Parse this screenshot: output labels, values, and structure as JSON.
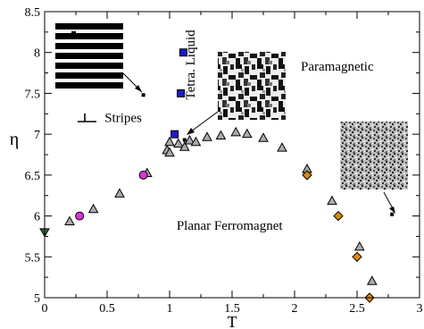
{
  "chart_data": {
    "type": "scatter",
    "xlabel": "T",
    "ylabel": "η",
    "xlim": [
      0,
      3
    ],
    "ylim": [
      5,
      8.5
    ],
    "x_ticks": [
      0,
      0.5,
      1,
      1.5,
      2,
      2.5,
      3
    ],
    "y_ticks": [
      5,
      5.5,
      6,
      6.5,
      7,
      7.5,
      8,
      8.5
    ],
    "x_tick_labels": [
      "0",
      "0.5",
      "1",
      "1.5",
      "2",
      "2.5",
      "3"
    ],
    "y_tick_labels": [
      "5",
      "5.5",
      "6",
      "6.5",
      "7",
      "7.5",
      "8",
      "8.5"
    ],
    "grid": false,
    "series": [
      {
        "marker": "triangle-up",
        "color": "#aaaaaa",
        "points": [
          [
            0.2,
            5.93
          ],
          [
            0.39,
            6.08
          ],
          [
            0.6,
            6.27
          ],
          [
            0.82,
            6.52
          ],
          [
            0.98,
            6.8
          ],
          [
            1.0,
            6.9
          ],
          [
            1.0,
            6.77
          ],
          [
            1.07,
            6.88
          ],
          [
            1.12,
            6.84
          ],
          [
            1.16,
            6.92
          ],
          [
            1.21,
            6.9
          ],
          [
            1.3,
            6.96
          ],
          [
            1.41,
            6.98
          ],
          [
            1.53,
            7.02
          ],
          [
            1.62,
            7.0
          ],
          [
            1.75,
            6.95
          ],
          [
            1.9,
            6.83
          ],
          [
            2.1,
            6.57
          ],
          [
            2.3,
            6.18
          ],
          [
            2.52,
            5.62
          ],
          [
            2.62,
            5.2
          ]
        ]
      },
      {
        "marker": "square",
        "color": "#1a1acc",
        "points": [
          [
            1.11,
            8.0
          ],
          [
            1.09,
            7.5
          ],
          [
            1.04,
            7.0
          ]
        ]
      },
      {
        "marker": "circle",
        "color": "#dd33dd",
        "points": [
          [
            0.28,
            6.0
          ],
          [
            0.79,
            6.5
          ]
        ]
      },
      {
        "marker": "diamond",
        "color": "#e08a00",
        "points": [
          [
            2.1,
            6.5
          ],
          [
            2.35,
            6.0
          ],
          [
            2.5,
            5.5
          ],
          [
            2.6,
            5.0
          ]
        ]
      },
      {
        "marker": "triangle-down",
        "color": "#2f6f3f",
        "points": [
          [
            0.0,
            5.8
          ]
        ]
      }
    ],
    "annotations": [
      {
        "text": "Paramagnetic",
        "x": 2.05,
        "y": 7.78
      },
      {
        "text": "Planar Ferromagnet",
        "x": 1.48,
        "y": 5.83
      },
      {
        "text": "Stripes",
        "x": 0.48,
        "y": 7.15
      },
      {
        "text": "Tetra. Liquid",
        "x": 1.2,
        "y": 7.85,
        "rotate": -90
      }
    ],
    "inset_markers": [
      [
        0.79,
        7.48
      ],
      [
        1.12,
        6.93
      ],
      [
        2.78,
        6.02
      ]
    ]
  }
}
